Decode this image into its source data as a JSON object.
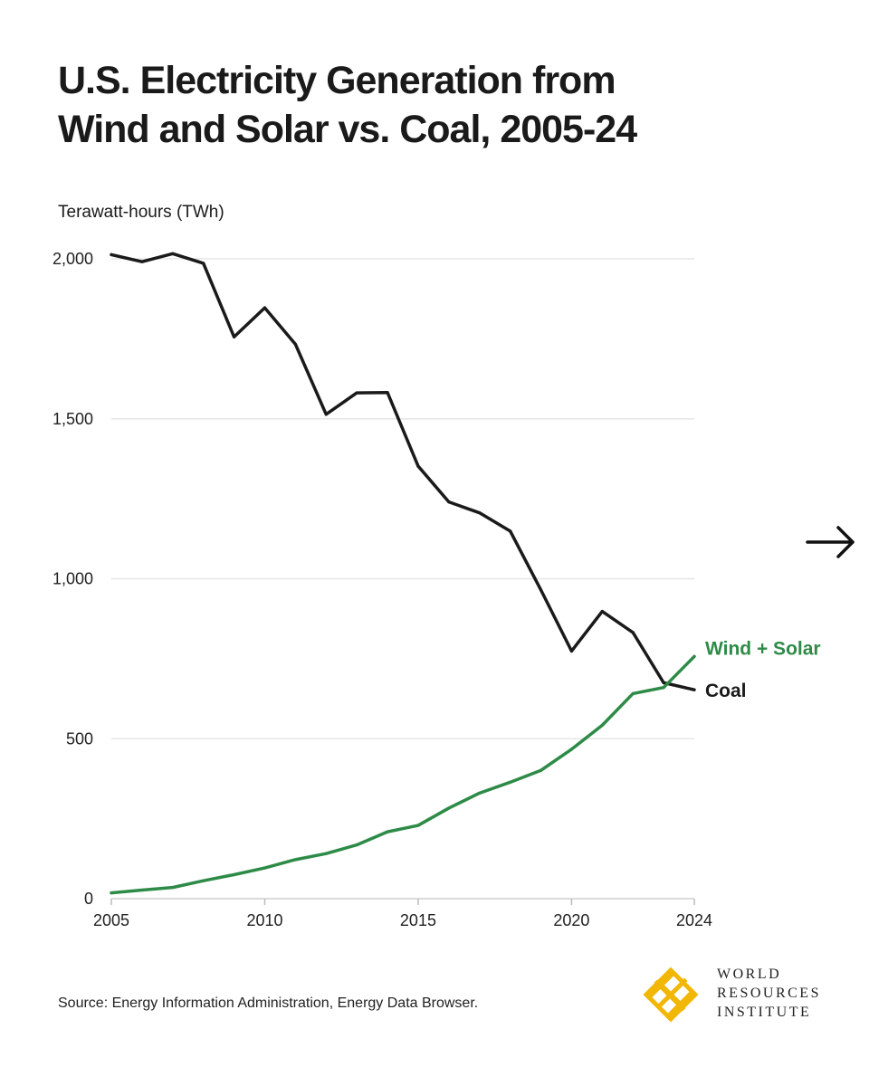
{
  "title": {
    "line1": "U.S. Electricity Generation from",
    "line2": "Wind and Solar vs. Coal, 2005-24"
  },
  "chart_data": {
    "type": "line",
    "title": "U.S. Electricity Generation from Wind and Solar vs. Coal, 2005-24",
    "ylabel": "Terawatt-hours (TWh)",
    "xlabel": "",
    "x": [
      2005,
      2006,
      2007,
      2008,
      2009,
      2010,
      2011,
      2012,
      2013,
      2014,
      2015,
      2016,
      2017,
      2018,
      2019,
      2020,
      2021,
      2022,
      2023,
      2024
    ],
    "xlim": [
      2005,
      2024
    ],
    "ylim": [
      0,
      2000
    ],
    "xticks": [
      2005,
      2010,
      2015,
      2020,
      2024
    ],
    "yticks": [
      0,
      500,
      1000,
      1500,
      2000
    ],
    "ytick_labels": [
      "0",
      "500",
      "1,000",
      "1,500",
      "2,000"
    ],
    "grid": true,
    "series": [
      {
        "name": "Coal",
        "label": "Coal",
        "color": "#1a1a1a",
        "values": [
          2013,
          1991,
          2016,
          1986,
          1756,
          1847,
          1733,
          1514,
          1581,
          1582,
          1352,
          1240,
          1206,
          1149,
          965,
          774,
          898,
          832,
          675,
          653
        ]
      },
      {
        "name": "Wind + Solar",
        "label": "Wind + Solar",
        "color": "#2e8b47",
        "values": [
          18,
          27,
          35,
          56,
          75,
          96,
          122,
          141,
          168,
          209,
          229,
          283,
          330,
          364,
          401,
          467,
          542,
          641,
          660,
          757
        ]
      }
    ]
  },
  "source": "Source: Energy Information Administration, Energy Data Browser.",
  "logo": {
    "line1": "WORLD",
    "line2": "RESOURCES",
    "line3": "INSTITUTE",
    "color": "#f2b705"
  },
  "nav": {
    "next_icon": "arrow-right-icon"
  }
}
